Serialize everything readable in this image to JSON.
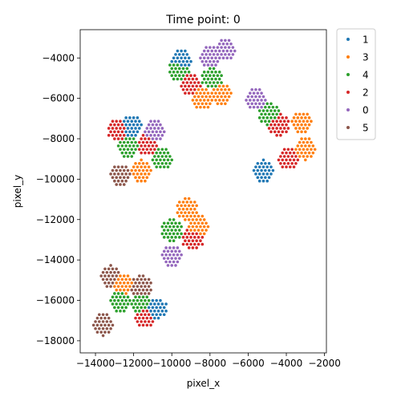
{
  "chart_data": {
    "type": "scatter",
    "title": "Time point: 0",
    "xlabel": "pixel_x",
    "ylabel": "pixel_y",
    "xlim": [
      -14800,
      -1900
    ],
    "ylim": [
      -18600,
      -2600
    ],
    "xticks": [
      -14000,
      -12000,
      -10000,
      -8000,
      -6000,
      -4000,
      -2000
    ],
    "xtick_labels": [
      "−14000",
      "−12000",
      "−10000",
      "−8000",
      "−6000",
      "−4000",
      "−2000"
    ],
    "yticks": [
      -4000,
      -6000,
      -8000,
      -10000,
      -12000,
      -14000,
      -16000,
      -18000
    ],
    "ytick_labels": [
      "−4000",
      "−6000",
      "−8000",
      "−10000",
      "−12000",
      "−14000",
      "−16000",
      "−18000"
    ],
    "grid": false,
    "legend_position": "outside-right",
    "legend_order": [
      "1",
      "3",
      "4",
      "2",
      "0",
      "5"
    ],
    "series_colors": {
      "0": "#9467bd",
      "1": "#1f77b4",
      "2": "#d62728",
      "3": "#ff7f0e",
      "4": "#2ca02c",
      "5": "#8c564b"
    },
    "spot_spacing": 200,
    "regions": [
      {
        "cx": -8000,
        "cy": -5000,
        "labels": [
          {
            "series": "0",
            "x": -7200,
            "y": -3600
          },
          {
            "series": "0",
            "x": -8000,
            "y": -4000
          },
          {
            "series": "1",
            "x": -9500,
            "y": -4100
          },
          {
            "series": "4",
            "x": -9600,
            "y": -4600
          },
          {
            "series": "2",
            "x": -9000,
            "y": -5300
          },
          {
            "series": "4",
            "x": -7900,
            "y": -5000
          },
          {
            "series": "3",
            "x": -7400,
            "y": -5800
          },
          {
            "series": "3",
            "x": -8400,
            "y": -6000
          }
        ]
      },
      {
        "cx": -4400,
        "cy": -7700,
        "labels": [
          {
            "series": "0",
            "x": -5600,
            "y": -6000
          },
          {
            "series": "4",
            "x": -4900,
            "y": -6800
          },
          {
            "series": "2",
            "x": -4400,
            "y": -7300
          },
          {
            "series": "3",
            "x": -3200,
            "y": -7200
          },
          {
            "series": "3",
            "x": -3000,
            "y": -8500
          },
          {
            "series": "2",
            "x": -3900,
            "y": -9000
          },
          {
            "series": "1",
            "x": -5200,
            "y": -9600
          }
        ]
      },
      {
        "cx": -11400,
        "cy": -8800,
        "labels": [
          {
            "series": "2",
            "x": -12800,
            "y": -7600
          },
          {
            "series": "1",
            "x": -12100,
            "y": -7400
          },
          {
            "series": "0",
            "x": -10900,
            "y": -7600
          },
          {
            "series": "4",
            "x": -12300,
            "y": -8400
          },
          {
            "series": "2",
            "x": -11300,
            "y": -8300
          },
          {
            "series": "4",
            "x": -10500,
            "y": -9000
          },
          {
            "series": "3",
            "x": -11600,
            "y": -9600
          },
          {
            "series": "5",
            "x": -12700,
            "y": -9800
          }
        ]
      },
      {
        "cx": -9600,
        "cy": -12700,
        "labels": [
          {
            "series": "3",
            "x": -9200,
            "y": -11500
          },
          {
            "series": "3",
            "x": -8600,
            "y": -12300
          },
          {
            "series": "4",
            "x": -10000,
            "y": -12500
          },
          {
            "series": "2",
            "x": -8900,
            "y": -13000
          },
          {
            "series": "0",
            "x": -10000,
            "y": -13800
          }
        ]
      },
      {
        "cx": -12500,
        "cy": -16000,
        "labels": [
          {
            "series": "5",
            "x": -13200,
            "y": -14800
          },
          {
            "series": "3",
            "x": -12600,
            "y": -15200
          },
          {
            "series": "5",
            "x": -11600,
            "y": -15300
          },
          {
            "series": "4",
            "x": -12700,
            "y": -16100
          },
          {
            "series": "4",
            "x": -11600,
            "y": -16200
          },
          {
            "series": "2",
            "x": -11400,
            "y": -16800
          },
          {
            "series": "1",
            "x": -10800,
            "y": -16400
          },
          {
            "series": "5",
            "x": -13600,
            "y": -17200
          }
        ]
      }
    ]
  }
}
